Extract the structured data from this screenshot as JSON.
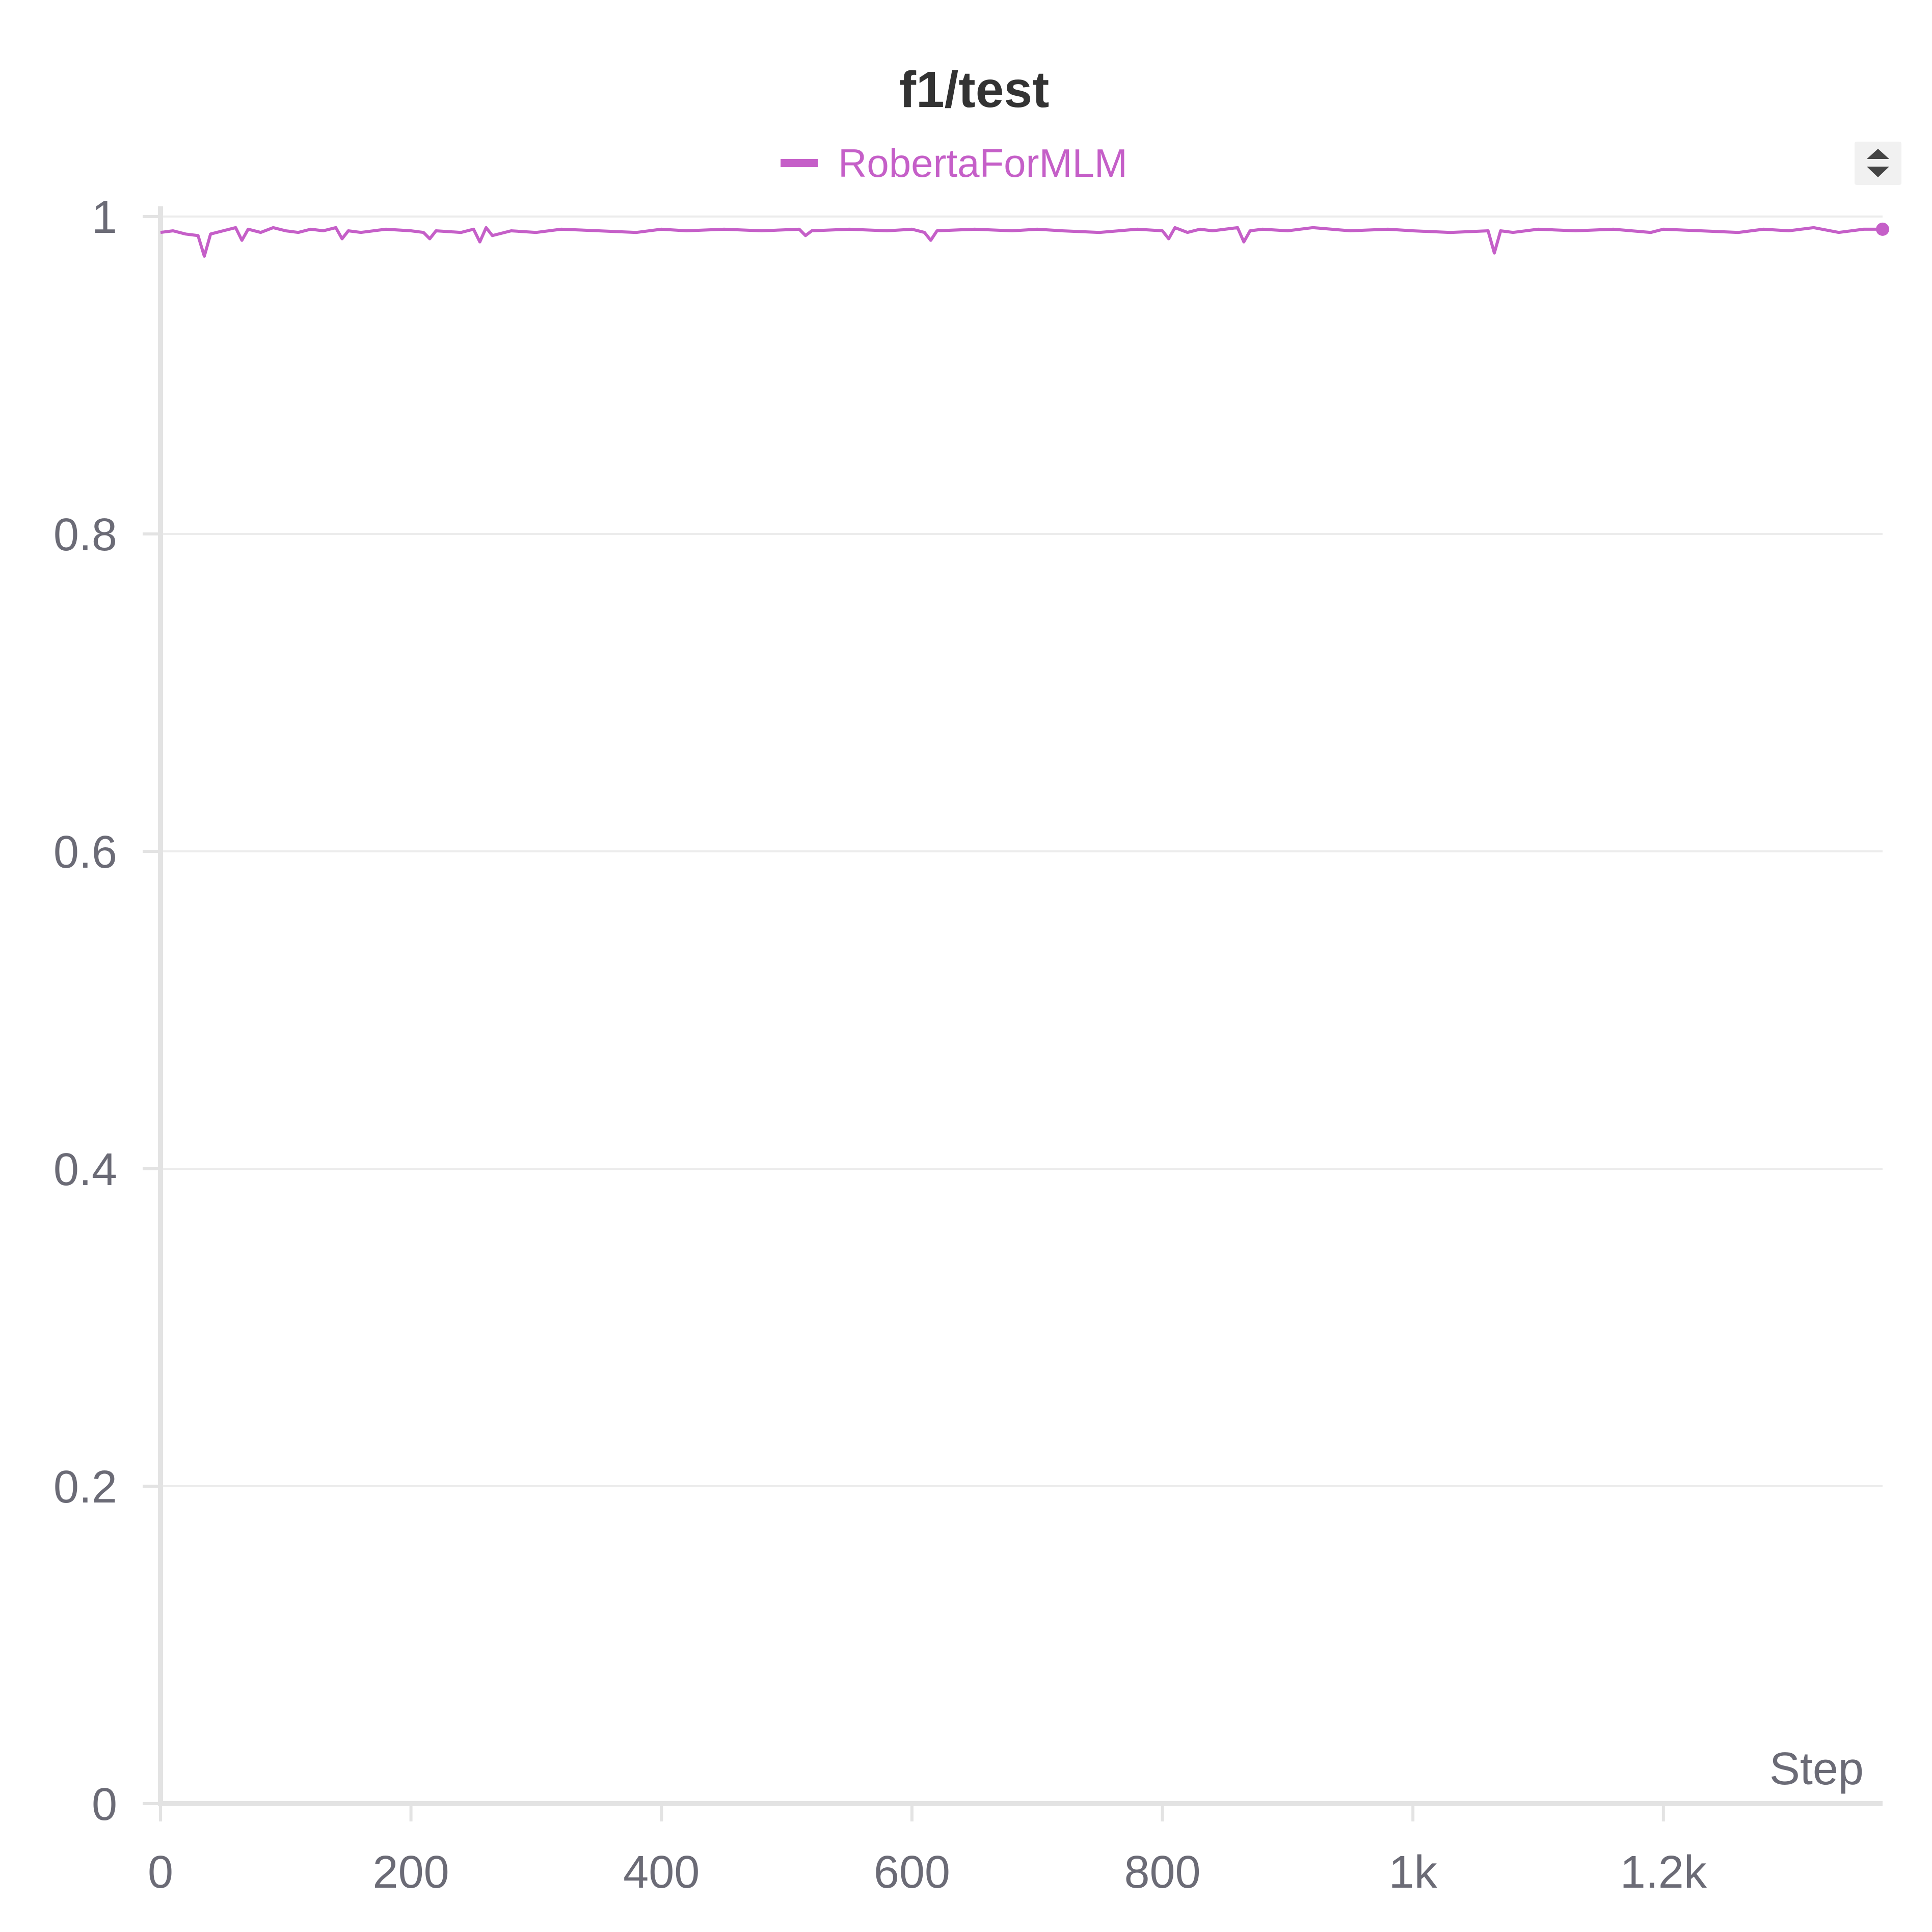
{
  "chart_data": {
    "type": "line",
    "title": "f1/test",
    "xlabel": "Step",
    "ylabel": "",
    "xlim": [
      0,
      1375
    ],
    "ylim": [
      0,
      1
    ],
    "x_ticks": [
      {
        "value": 0,
        "label": "0"
      },
      {
        "value": 200,
        "label": "200"
      },
      {
        "value": 400,
        "label": "400"
      },
      {
        "value": 600,
        "label": "600"
      },
      {
        "value": 800,
        "label": "800"
      },
      {
        "value": 1000,
        "label": "1k"
      },
      {
        "value": 1200,
        "label": "1.2k"
      }
    ],
    "y_ticks": [
      {
        "value": 0,
        "label": "0"
      },
      {
        "value": 0.2,
        "label": "0.2"
      },
      {
        "value": 0.4,
        "label": "0.4"
      },
      {
        "value": 0.6,
        "label": "0.6"
      },
      {
        "value": 0.8,
        "label": "0.8"
      },
      {
        "value": 1,
        "label": "1"
      }
    ],
    "grid": true,
    "legend_position": "top-center",
    "series": [
      {
        "name": "RobertaForMLM",
        "color": "#c55fc8",
        "x": [
          0,
          10,
          20,
          30,
          35,
          40,
          50,
          60,
          65,
          70,
          80,
          90,
          100,
          110,
          120,
          130,
          140,
          145,
          150,
          160,
          180,
          200,
          210,
          215,
          220,
          240,
          250,
          255,
          260,
          265,
          280,
          300,
          320,
          350,
          380,
          400,
          420,
          450,
          480,
          510,
          515,
          520,
          550,
          580,
          600,
          610,
          615,
          620,
          650,
          680,
          700,
          720,
          750,
          780,
          800,
          805,
          810,
          820,
          830,
          840,
          860,
          865,
          870,
          880,
          900,
          920,
          950,
          980,
          1000,
          1030,
          1060,
          1065,
          1070,
          1080,
          1100,
          1130,
          1160,
          1190,
          1200,
          1230,
          1260,
          1280,
          1300,
          1320,
          1340,
          1360,
          1375
        ],
        "y": [
          0.99,
          0.991,
          0.989,
          0.988,
          0.975,
          0.989,
          0.991,
          0.993,
          0.985,
          0.992,
          0.99,
          0.993,
          0.991,
          0.99,
          0.992,
          0.991,
          0.993,
          0.986,
          0.991,
          0.99,
          0.992,
          0.991,
          0.99,
          0.986,
          0.991,
          0.99,
          0.992,
          0.984,
          0.993,
          0.988,
          0.991,
          0.99,
          0.992,
          0.991,
          0.99,
          0.992,
          0.991,
          0.992,
          0.991,
          0.992,
          0.988,
          0.991,
          0.992,
          0.991,
          0.992,
          0.99,
          0.985,
          0.991,
          0.992,
          0.991,
          0.992,
          0.991,
          0.99,
          0.992,
          0.991,
          0.986,
          0.993,
          0.99,
          0.992,
          0.991,
          0.993,
          0.984,
          0.991,
          0.992,
          0.991,
          0.993,
          0.991,
          0.992,
          0.991,
          0.99,
          0.991,
          0.977,
          0.991,
          0.99,
          0.992,
          0.991,
          0.992,
          0.99,
          0.992,
          0.991,
          0.99,
          0.992,
          0.991,
          0.993,
          0.99,
          0.992,
          0.992
        ]
      }
    ]
  }
}
